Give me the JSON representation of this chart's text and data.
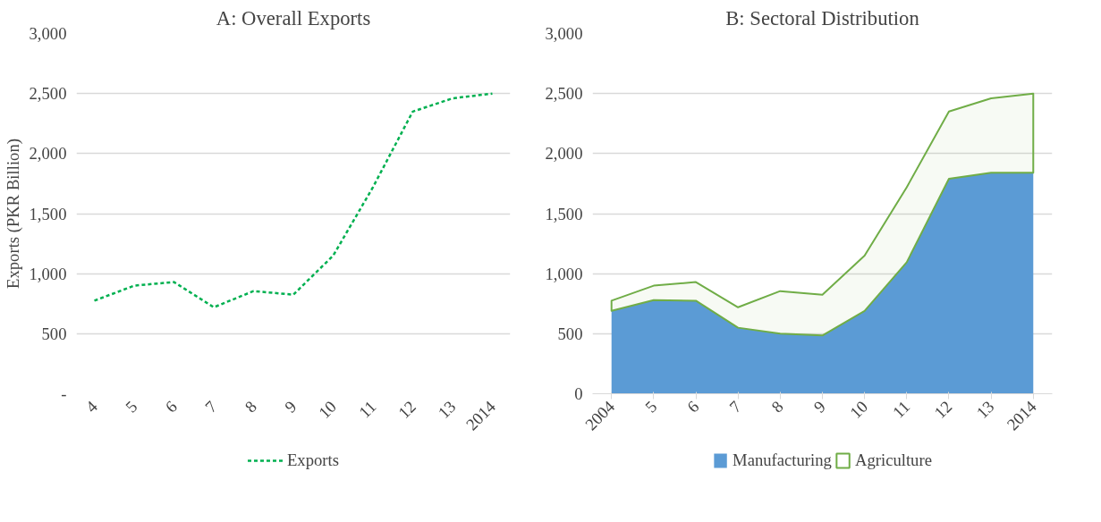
{
  "chart_data": [
    {
      "type": "line",
      "title": "A: Overall Exports",
      "ylabel": "Exports (PKR Billion)",
      "categories": [
        "4",
        "5",
        "6",
        "7",
        "8",
        "9",
        "10",
        "11",
        "12",
        "13",
        "2014"
      ],
      "series": [
        {
          "name": "Exports",
          "color": "#00b050",
          "values": [
            775,
            900,
            930,
            720,
            855,
            825,
            1150,
            1720,
            2350,
            2460,
            2500
          ]
        }
      ],
      "ylim": [
        0,
        3000
      ],
      "yticks": [
        {
          "value": 0,
          "label": "-"
        },
        {
          "value": 500,
          "label": "500"
        },
        {
          "value": 1000,
          "label": "1,000"
        },
        {
          "value": 1500,
          "label": "1,500"
        },
        {
          "value": 2000,
          "label": "2,000"
        },
        {
          "value": 2500,
          "label": "2,500"
        },
        {
          "value": 3000,
          "label": "3,000"
        }
      ],
      "grid": "y",
      "legend": "bottom",
      "line_style": "dashed"
    },
    {
      "type": "area",
      "title": "B: Sectoral Distribution",
      "categories": [
        "2004",
        "5",
        "6",
        "7",
        "8",
        "9",
        "10",
        "11",
        "12",
        "13",
        "2014"
      ],
      "stacked": true,
      "series": [
        {
          "name": "Manufacturing",
          "color": "#5b9bd5",
          "values": [
            690,
            780,
            775,
            550,
            500,
            485,
            690,
            1095,
            1790,
            1840,
            1840
          ]
        },
        {
          "name": "Agriculture",
          "color": "#70ad47",
          "values": [
            85,
            120,
            155,
            170,
            355,
            340,
            460,
            625,
            560,
            620,
            660
          ]
        }
      ],
      "ylim": [
        0,
        3000
      ],
      "yticks": [
        0,
        {
          "value": 500,
          "label": "500"
        },
        {
          "value": 1000,
          "label": "1,000"
        },
        {
          "value": 1500,
          "label": "1,500"
        },
        {
          "value": 2000,
          "label": "2,000"
        },
        {
          "value": 2500,
          "label": "2,500"
        },
        {
          "value": 3000,
          "label": "3,000"
        }
      ],
      "grid": "y",
      "legend": "bottom"
    }
  ]
}
